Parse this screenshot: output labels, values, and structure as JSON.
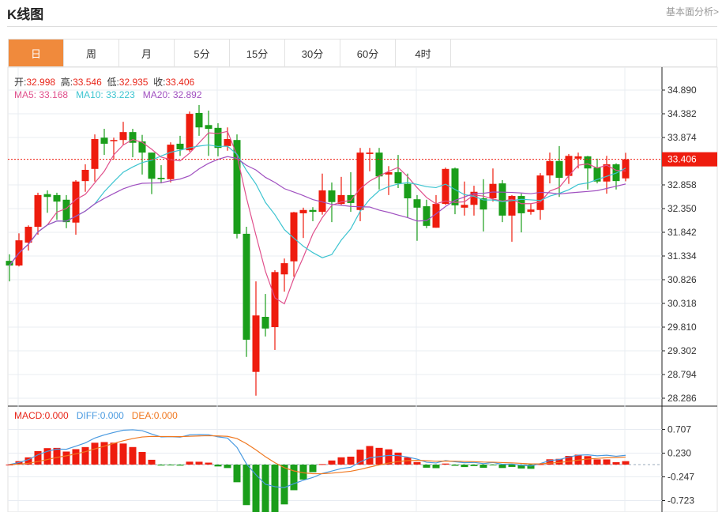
{
  "header": {
    "title": "K线图",
    "link": "基本面分析>"
  },
  "tabs": [
    {
      "label": "日",
      "active": true
    },
    {
      "label": "周"
    },
    {
      "label": "月"
    },
    {
      "label": "5分"
    },
    {
      "label": "15分"
    },
    {
      "label": "30分"
    },
    {
      "label": "60分"
    },
    {
      "label": "4时"
    }
  ],
  "info": {
    "open_label": "开:",
    "open": "32.998",
    "high_label": "高:",
    "high": "33.546",
    "low_label": "低:",
    "low": "32.935",
    "close_label": "收:",
    "close": "33.406",
    "ma5": "MA5: 33.168",
    "ma10": "MA10: 33.223",
    "ma20": "MA20: 32.892",
    "macd": "MACD:0.000",
    "diff": "DIFF:0.000",
    "dea": "DEA:0.000"
  },
  "colors": {
    "up": "#ee1c0e",
    "down": "#1a9e1a",
    "ma5": "#e0508c",
    "ma10": "#3cc4d0",
    "ma20": "#a050c0",
    "diff": "#4a9ae0",
    "dea": "#f07820",
    "active_tab": "#f08a3c"
  },
  "chart_data": {
    "type": "candlestick",
    "price_ticks": [
      "34.890",
      "34.382",
      "33.874",
      "33.406",
      "32.858",
      "32.350",
      "31.842",
      "31.334",
      "30.826",
      "30.318",
      "29.810",
      "29.302",
      "28.794",
      "28.286"
    ],
    "ylim": [
      28.286,
      34.89
    ],
    "last_price": "33.406",
    "macd_ticks": [
      "0.707",
      "0.230",
      "-0.247",
      "-0.723"
    ],
    "macd_ylim": [
      -0.723,
      0.707
    ],
    "ohlc": [
      [
        31.23,
        31.37,
        30.79,
        31.13
      ],
      [
        31.13,
        31.82,
        31.11,
        31.67
      ],
      [
        31.62,
        31.99,
        31.45,
        31.96
      ],
      [
        31.96,
        32.69,
        31.79,
        32.64
      ],
      [
        32.66,
        32.74,
        32.26,
        32.6
      ],
      [
        32.64,
        32.69,
        32.11,
        32.5
      ],
      [
        32.54,
        32.64,
        31.93,
        32.06
      ],
      [
        32.05,
        32.96,
        31.79,
        32.93
      ],
      [
        32.94,
        33.3,
        32.71,
        33.18
      ],
      [
        33.2,
        33.94,
        32.93,
        33.84
      ],
      [
        33.87,
        34.06,
        33.5,
        33.74
      ],
      [
        33.81,
        33.87,
        33.4,
        33.82
      ],
      [
        33.82,
        34.21,
        33.72,
        33.99
      ],
      [
        33.99,
        34.06,
        33.45,
        33.76
      ],
      [
        33.79,
        33.93,
        33.08,
        33.55
      ],
      [
        33.55,
        33.55,
        32.66,
        32.99
      ],
      [
        33.01,
        33.28,
        32.89,
        32.98
      ],
      [
        32.98,
        33.77,
        32.91,
        33.72
      ],
      [
        33.74,
        33.91,
        33.48,
        33.62
      ],
      [
        33.6,
        34.43,
        33.57,
        34.38
      ],
      [
        34.4,
        34.57,
        33.91,
        34.09
      ],
      [
        34.14,
        34.45,
        33.48,
        34.06
      ],
      [
        34.08,
        34.18,
        33.47,
        33.65
      ],
      [
        33.69,
        34.09,
        33.59,
        33.84
      ],
      [
        33.82,
        33.94,
        31.71,
        31.81
      ],
      [
        31.81,
        31.96,
        29.17,
        29.54
      ],
      [
        28.85,
        30.79,
        28.34,
        30.06
      ],
      [
        30.03,
        30.52,
        29.61,
        29.78
      ],
      [
        29.81,
        31.03,
        29.32,
        30.99
      ],
      [
        30.94,
        31.28,
        30.57,
        31.18
      ],
      [
        31.22,
        32.28,
        30.89,
        32.27
      ],
      [
        32.25,
        32.37,
        31.72,
        32.32
      ],
      [
        32.32,
        32.38,
        32.08,
        32.28
      ],
      [
        32.28,
        33.1,
        32.22,
        32.74
      ],
      [
        32.74,
        32.91,
        32.06,
        32.49
      ],
      [
        32.45,
        33.03,
        32.42,
        32.64
      ],
      [
        32.64,
        33.13,
        32.28,
        32.47
      ],
      [
        32.32,
        33.65,
        32.08,
        33.55
      ],
      [
        33.52,
        33.65,
        33.15,
        33.55
      ],
      [
        33.55,
        33.65,
        32.76,
        33.04
      ],
      [
        33.08,
        33.26,
        32.64,
        33.13
      ],
      [
        33.13,
        33.5,
        32.79,
        32.89
      ],
      [
        32.88,
        33.1,
        32.16,
        32.57
      ],
      [
        32.55,
        32.64,
        31.66,
        32.37
      ],
      [
        32.4,
        32.54,
        31.93,
        31.98
      ],
      [
        31.94,
        32.64,
        31.94,
        32.45
      ],
      [
        32.45,
        33.23,
        32.43,
        33.2
      ],
      [
        33.21,
        33.23,
        32.23,
        32.42
      ],
      [
        32.37,
        32.93,
        32.2,
        32.43
      ],
      [
        32.43,
        32.84,
        32.2,
        32.71
      ],
      [
        32.57,
        32.98,
        31.86,
        32.33
      ],
      [
        32.57,
        33.21,
        32.5,
        32.88
      ],
      [
        32.89,
        32.96,
        32.06,
        32.2
      ],
      [
        32.2,
        32.64,
        31.64,
        32.62
      ],
      [
        32.62,
        32.67,
        31.84,
        32.25
      ],
      [
        32.28,
        32.45,
        32.22,
        32.33
      ],
      [
        32.32,
        33.11,
        32.11,
        33.06
      ],
      [
        33.06,
        33.55,
        32.89,
        33.37
      ],
      [
        33.37,
        33.69,
        32.6,
        33.01
      ],
      [
        33.05,
        33.52,
        32.88,
        33.48
      ],
      [
        33.42,
        33.55,
        33.21,
        33.47
      ],
      [
        33.47,
        33.48,
        32.76,
        33.21
      ],
      [
        33.23,
        33.42,
        32.89,
        32.93
      ],
      [
        32.93,
        33.48,
        32.67,
        33.3
      ],
      [
        33.3,
        33.32,
        32.76,
        32.94
      ],
      [
        32.998,
        33.546,
        32.935,
        33.406
      ]
    ],
    "indicators": [
      "MA5",
      "MA10",
      "MA20",
      "MACD(12,26,9)"
    ]
  }
}
